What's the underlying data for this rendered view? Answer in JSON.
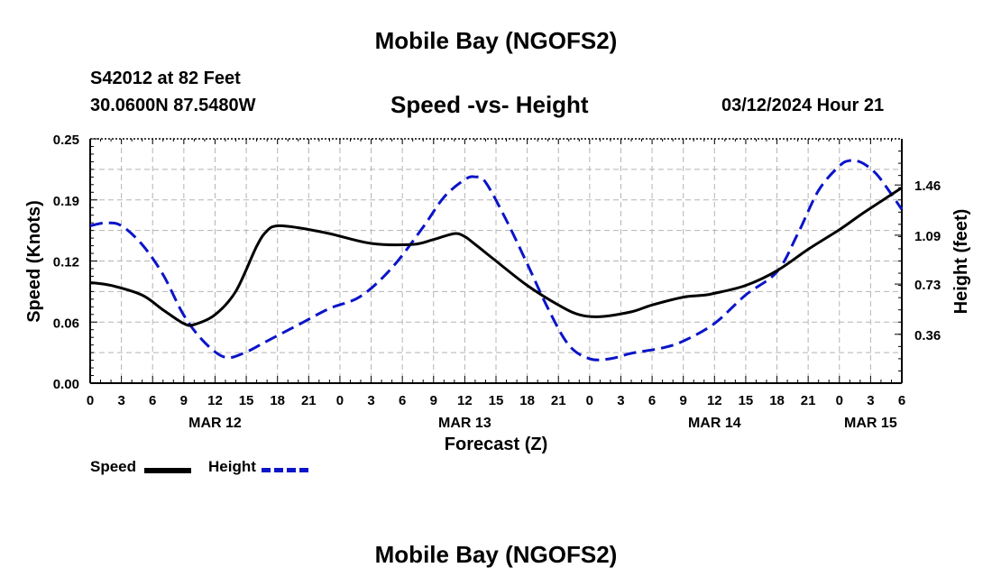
{
  "header": {
    "title": "Mobile Bay (NGOFS2)",
    "station": "S42012 at 82 Feet",
    "location": "30.0600N  87.5480W",
    "subtitle": "Speed -vs- Height",
    "datetime": "03/12/2024 Hour 21"
  },
  "footer": {
    "title": "Mobile Bay (NGOFS2)"
  },
  "colors": {
    "speed": "#000000",
    "height": "#0a14c8",
    "grid": "#b4b4b4"
  },
  "chart_data": {
    "type": "line",
    "title": "Speed -vs- Height",
    "xlabel": "Forecast (Z)",
    "ylabel": "Speed (Knots)",
    "y2label": "Height (feet)",
    "xlim": [
      0,
      78
    ],
    "ylim": [
      0,
      0.25
    ],
    "y2lim": [
      0,
      1.8
    ],
    "grid": true,
    "x_ticks": [
      "0",
      "3",
      "6",
      "9",
      "12",
      "15",
      "18",
      "21",
      "0",
      "3",
      "6",
      "9",
      "12",
      "15",
      "18",
      "21",
      "0",
      "3",
      "6",
      "9",
      "12",
      "15",
      "18",
      "21",
      "0",
      "3",
      "6"
    ],
    "day_labels": [
      {
        "hour": 12,
        "label": "MAR 12"
      },
      {
        "hour": 36,
        "label": "MAR 13"
      },
      {
        "hour": 60,
        "label": "MAR 14"
      },
      {
        "hour": 75,
        "label": "MAR 15"
      }
    ],
    "y_ticks": [
      "0.00",
      "0.06",
      "0.12",
      "0.19",
      "0.25"
    ],
    "y_tick_values": [
      0,
      0.0625,
      0.125,
      0.1875,
      0.25
    ],
    "y2_ticks": [
      "0.36",
      "0.73",
      "1.09",
      "1.46"
    ],
    "y2_tick_values": [
      0.36,
      0.73,
      1.09,
      1.46
    ],
    "legend": {
      "speed_label": "Speed",
      "height_label": "Height",
      "placement": "bottom-left"
    },
    "series": [
      {
        "name": "Speed",
        "axis": "left",
        "style": "solid",
        "x": [
          0,
          2,
          5,
          7,
          9,
          10,
          12,
          14,
          16,
          17,
          18,
          20,
          23,
          27,
          31,
          33,
          35,
          36,
          37,
          39,
          42,
          45,
          47,
          49,
          52,
          54,
          57,
          59,
          60,
          63,
          66,
          69,
          72,
          74,
          76,
          78
        ],
        "y": [
          0.103,
          0.1,
          0.09,
          0.075,
          0.061,
          0.06,
          0.07,
          0.094,
          0.14,
          0.156,
          0.161,
          0.159,
          0.153,
          0.143,
          0.142,
          0.147,
          0.153,
          0.15,
          0.142,
          0.125,
          0.1,
          0.08,
          0.07,
          0.068,
          0.073,
          0.08,
          0.088,
          0.09,
          0.092,
          0.1,
          0.115,
          0.137,
          0.157,
          0.172,
          0.186,
          0.2
        ]
      },
      {
        "name": "Height",
        "axis": "right",
        "style": "dashed",
        "x": [
          0,
          1.5,
          3,
          5,
          7,
          9,
          11,
          13,
          15,
          17,
          20,
          23,
          26,
          29,
          32,
          34,
          36,
          37,
          38,
          40,
          42,
          44,
          46,
          48,
          50,
          52,
          55,
          57,
          60,
          63,
          66,
          68,
          70,
          72,
          73,
          74,
          75,
          76,
          78
        ],
        "y": [
          1.16,
          1.18,
          1.16,
          1.02,
          0.8,
          0.5,
          0.3,
          0.19,
          0.23,
          0.31,
          0.43,
          0.55,
          0.64,
          0.85,
          1.15,
          1.37,
          1.5,
          1.52,
          1.48,
          1.2,
          0.88,
          0.55,
          0.28,
          0.18,
          0.18,
          0.22,
          0.26,
          0.31,
          0.44,
          0.65,
          0.82,
          1.1,
          1.42,
          1.6,
          1.64,
          1.63,
          1.58,
          1.5,
          1.28
        ]
      }
    ]
  }
}
